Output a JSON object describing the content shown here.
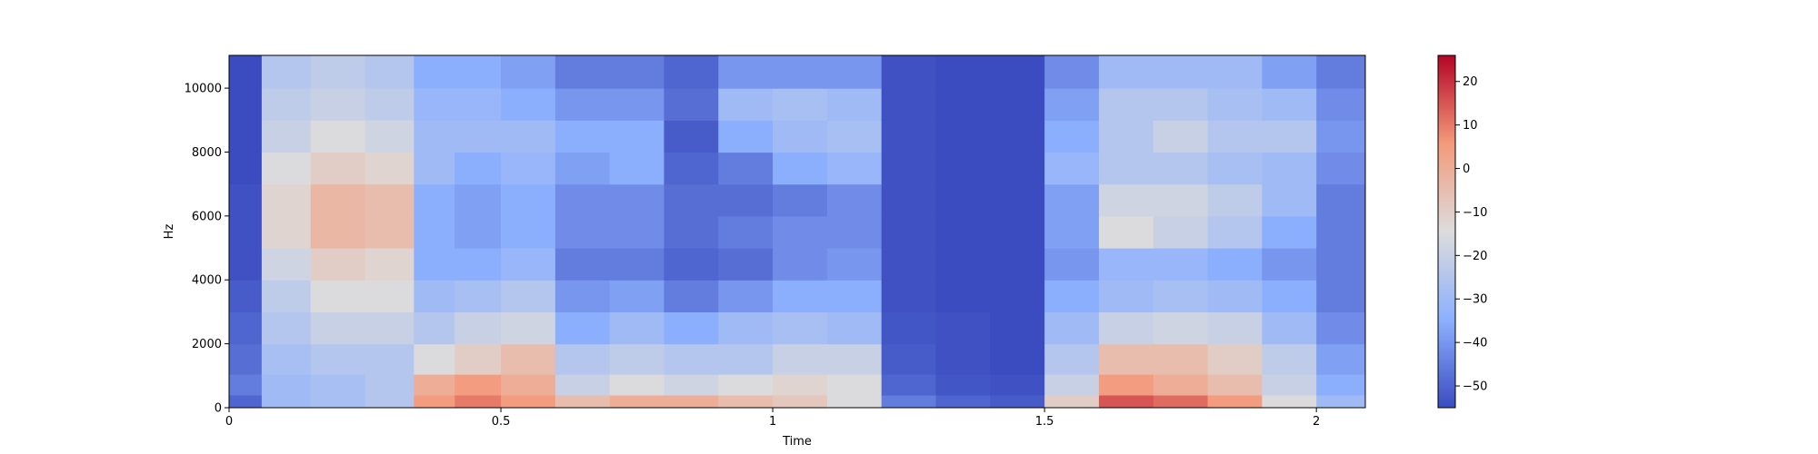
{
  "chart_data": {
    "type": "heatmap",
    "title": "",
    "xlabel": "Time",
    "ylabel": "Hz",
    "xlim": [
      0,
      2.09
    ],
    "ylim": [
      0,
      11025
    ],
    "x_ticks": [
      {
        "value": 0,
        "label": "0"
      },
      {
        "value": 0.5,
        "label": "0.5"
      },
      {
        "value": 1,
        "label": "1"
      },
      {
        "value": 1.5,
        "label": "1.5"
      },
      {
        "value": 2,
        "label": "2"
      }
    ],
    "y_ticks": [
      {
        "value": 0,
        "label": "0"
      },
      {
        "value": 2000,
        "label": "2000"
      },
      {
        "value": 4000,
        "label": "4000"
      },
      {
        "value": 6000,
        "label": "6000"
      },
      {
        "value": 8000,
        "label": "8000"
      },
      {
        "value": 10000,
        "label": "10000"
      }
    ],
    "colorbar": {
      "colormap": "coolwarm",
      "range": [
        -55,
        26
      ],
      "ticks": [
        {
          "value": 20,
          "label": "20"
        },
        {
          "value": 10,
          "label": "10"
        },
        {
          "value": 0,
          "label": "0"
        },
        {
          "value": -10,
          "label": "−10"
        },
        {
          "value": -20,
          "label": "−20"
        },
        {
          "value": -30,
          "label": "−30"
        },
        {
          "value": -40,
          "label": "−40"
        },
        {
          "value": -50,
          "label": "−50"
        }
      ]
    },
    "grid": false,
    "time_bins": [
      0.02,
      0.1,
      0.2,
      0.3,
      0.38,
      0.45,
      0.55,
      0.65,
      0.75,
      0.85,
      0.95,
      1.05,
      1.15,
      1.25,
      1.35,
      1.45,
      1.55,
      1.65,
      1.75,
      1.85,
      1.95,
      2.05
    ],
    "freq_bins": [
      200,
      600,
      1500,
      2500,
      3500,
      4500,
      5500,
      6500,
      7500,
      8500,
      9500,
      10500
    ],
    "db_values": [
      [
        -50,
        -45,
        -48,
        -50,
        -52,
        -54,
        -54,
        -54,
        -55,
        -55,
        -55,
        -55
      ],
      [
        -30,
        -30,
        -28,
        -25,
        -22,
        -18,
        -12,
        -12,
        -15,
        -20,
        -22,
        -25
      ],
      [
        -28,
        -28,
        -25,
        -20,
        -15,
        -10,
        -3,
        -3,
        -10,
        -15,
        -20,
        -22
      ],
      [
        -25,
        -25,
        -25,
        -20,
        -15,
        -12,
        -5,
        -5,
        -12,
        -18,
        -22,
        -25
      ],
      [
        5,
        0,
        -15,
        -25,
        -30,
        -35,
        -35,
        -35,
        -30,
        -30,
        -32,
        -35
      ],
      [
        10,
        5,
        -10,
        -20,
        -28,
        -35,
        -38,
        -38,
        -35,
        -30,
        -32,
        -35
      ],
      [
        5,
        0,
        -5,
        -18,
        -25,
        -32,
        -35,
        -35,
        -32,
        -30,
        -35,
        -38
      ],
      [
        -5,
        -20,
        -25,
        -35,
        -40,
        -45,
        -42,
        -42,
        -38,
        -35,
        -40,
        -45
      ],
      [
        0,
        -15,
        -22,
        -30,
        -38,
        -45,
        -42,
        -42,
        -35,
        -35,
        -40,
        -45
      ],
      [
        0,
        -18,
        -25,
        -35,
        -45,
        -50,
        -48,
        -48,
        -50,
        -52,
        -48,
        -50
      ],
      [
        -5,
        -15,
        -25,
        -30,
        -40,
        -48,
        -45,
        -48,
        -45,
        -35,
        -30,
        -40
      ],
      [
        -8,
        -12,
        -20,
        -28,
        -35,
        -42,
        -42,
        -45,
        -35,
        -30,
        -28,
        -40
      ],
      [
        -15,
        -15,
        -20,
        -30,
        -35,
        -40,
        -42,
        -42,
        -32,
        -28,
        -30,
        -40
      ],
      [
        -45,
        -50,
        -52,
        -53,
        -54,
        -54,
        -54,
        -54,
        -54,
        -54,
        -54,
        -54
      ],
      [
        -50,
        -53,
        -54,
        -54,
        -55,
        -55,
        -55,
        -55,
        -55,
        -55,
        -55,
        -55
      ],
      [
        -52,
        -54,
        -55,
        -55,
        -55,
        -55,
        -55,
        -55,
        -55,
        -55,
        -55,
        -55
      ],
      [
        -10,
        -20,
        -25,
        -30,
        -35,
        -40,
        -38,
        -38,
        -32,
        -35,
        -38,
        -42
      ],
      [
        15,
        5,
        -5,
        -20,
        -30,
        -32,
        -15,
        -18,
        -25,
        -25,
        -25,
        -30
      ],
      [
        12,
        0,
        -5,
        -18,
        -28,
        -32,
        -20,
        -18,
        -25,
        -20,
        -25,
        -30
      ],
      [
        5,
        -5,
        -10,
        -20,
        -30,
        -35,
        -25,
        -22,
        -28,
        -25,
        -28,
        -30
      ],
      [
        -15,
        -20,
        -22,
        -30,
        -35,
        -40,
        -35,
        -30,
        -30,
        -25,
        -30,
        -38
      ],
      [
        -30,
        -35,
        -38,
        -42,
        -45,
        -45,
        -45,
        -45,
        -42,
        -40,
        -42,
        -45
      ]
    ]
  }
}
